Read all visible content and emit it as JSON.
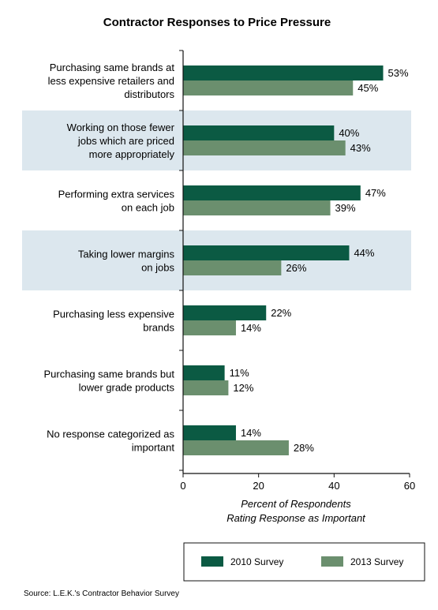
{
  "chart_data": {
    "type": "bar",
    "orientation": "horizontal",
    "title": "Contractor Responses to Price Pressure",
    "categories": [
      [
        "Purchasing same brands at",
        "less expensive retailers and",
        "distributors"
      ],
      [
        "Working on those fewer",
        "jobs which are priced",
        "more appropriately"
      ],
      [
        "Performing extra services",
        "on each job"
      ],
      [
        "Taking lower margins",
        "on jobs"
      ],
      [
        "Purchasing less expensive",
        "brands"
      ],
      [
        "Purchasing same brands but",
        "lower grade products"
      ],
      [
        "No response categorized as",
        "important"
      ]
    ],
    "highlighted_rows": [
      1,
      3
    ],
    "series": [
      {
        "name": "2010 Survey",
        "values": [
          53,
          40,
          47,
          44,
          22,
          11,
          14
        ],
        "labels": [
          "53%",
          "40%",
          "47%",
          "44%",
          "22%",
          "11%",
          "14%"
        ],
        "color": "#0b5a43"
      },
      {
        "name": "2013 Survey",
        "values": [
          45,
          43,
          39,
          26,
          14,
          12,
          28
        ],
        "labels": [
          "45%",
          "43%",
          "39%",
          "26%",
          "14%",
          "12%",
          "28%"
        ],
        "color": "#6b8f6e"
      }
    ],
    "xlim": [
      0,
      60
    ],
    "xticks": [
      0,
      20,
      40,
      60
    ],
    "xtick_labels": [
      "0",
      "20",
      "40",
      "60"
    ],
    "xlabel_lines": [
      "Percent of Respondents",
      "Rating Response as Important"
    ],
    "highlight_color": "#dce7ee",
    "legend_position": "bottom-right",
    "source": "Source: L.E.K.'s Contractor Behavior Survey"
  }
}
